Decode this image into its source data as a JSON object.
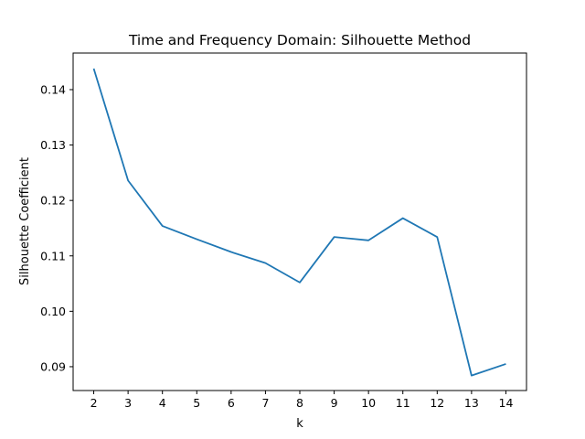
{
  "chart_data": {
    "type": "line",
    "title": "Time and Frequency Domain: Silhouette Method",
    "xlabel": "k",
    "ylabel": "Silhouette Coefficient",
    "x": [
      2,
      3,
      4,
      5,
      6,
      7,
      8,
      9,
      10,
      11,
      12,
      13,
      14
    ],
    "series": [
      {
        "values": [
          0.1438,
          0.1236,
          0.1154,
          0.113,
          0.1107,
          0.1087,
          0.1052,
          0.1134,
          0.1128,
          0.1168,
          0.1134,
          0.0884,
          0.0905
        ]
      }
    ],
    "xticks": [
      2,
      3,
      4,
      5,
      6,
      7,
      8,
      9,
      10,
      11,
      12,
      13,
      14
    ],
    "yticks": [
      0.09,
      0.1,
      0.11,
      0.12,
      0.13,
      0.14
    ],
    "ytick_labels": [
      "0.09",
      "0.10",
      "0.11",
      "0.12",
      "0.13",
      "0.14"
    ],
    "xlim": [
      1.4,
      14.6
    ],
    "ylim": [
      0.0857,
      0.1466
    ],
    "grid": false,
    "line_color": "#1f77b4"
  }
}
